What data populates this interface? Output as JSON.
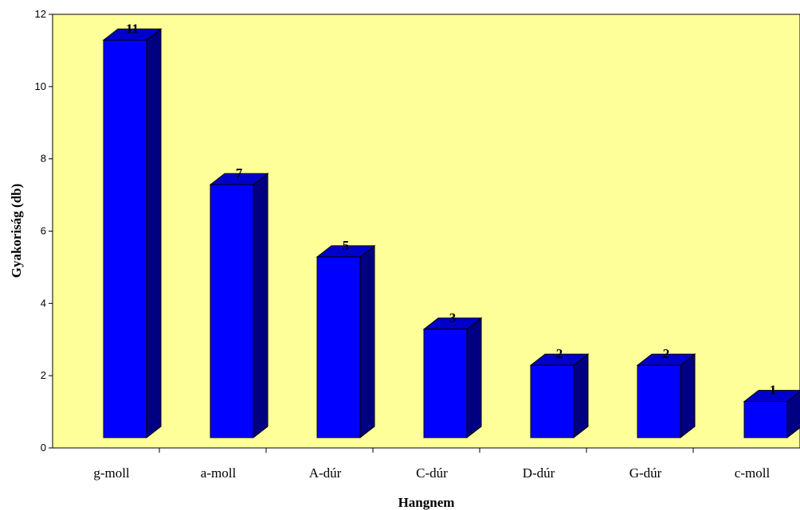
{
  "chart_data": {
    "type": "bar",
    "categories": [
      "g-moll",
      "a-moll",
      "A-dúr",
      "C-dúr",
      "D-dúr",
      "G-dúr",
      "c-moll"
    ],
    "values": [
      11,
      7,
      5,
      3,
      2,
      2,
      1
    ],
    "data_labels": [
      "11",
      "7",
      "5",
      "3",
      "2",
      "2",
      "1"
    ],
    "xlabel": "Hangnem",
    "ylabel": "Gyakoriság (db)",
    "ylim": [
      0,
      12
    ],
    "yticks": [
      "0",
      "2",
      "4",
      "6",
      "8",
      "10",
      "12"
    ],
    "grid": false,
    "bar_style": "3d",
    "colors": {
      "plot_background": "#FFFF99",
      "bar_front": "#0000FF",
      "bar_top": "#0000CC",
      "bar_side": "#000080",
      "bar_outline": "#000000"
    }
  }
}
